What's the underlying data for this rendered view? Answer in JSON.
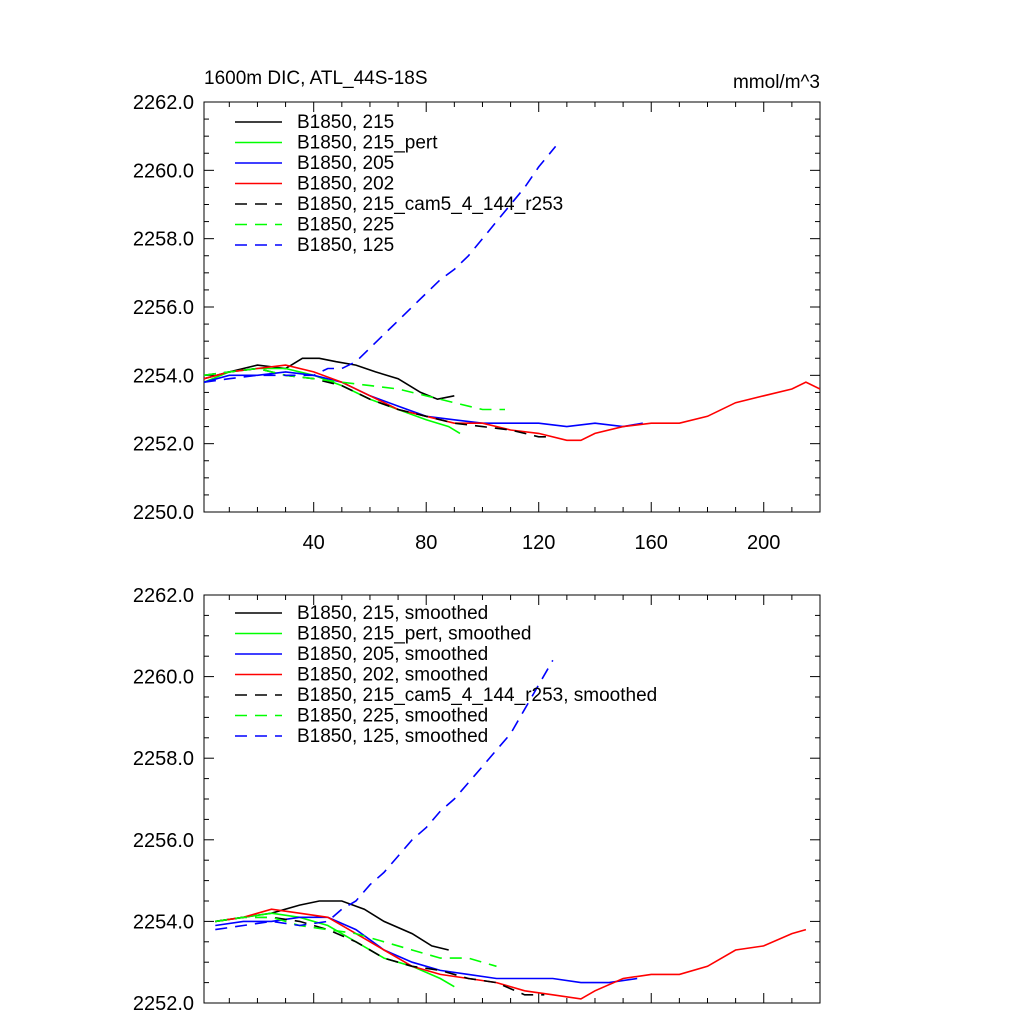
{
  "panel_top": {
    "title": "1600m DIC, ATL_44S-18S",
    "units": "mmol/m^3"
  },
  "colors": {
    "black": "#000000",
    "green": "#00ff00",
    "blue": "#0000ff",
    "red": "#ff0000"
  },
  "chart_data": [
    {
      "type": "line",
      "title": "1600m DIC, ATL_44S-18S",
      "units_label": "mmol/m^3",
      "xlabel": "",
      "ylabel": "",
      "xlim": [
        1,
        220
      ],
      "ylim": [
        2250,
        2262
      ],
      "xticks": [
        40,
        80,
        120,
        160,
        200
      ],
      "xtick_labels": [
        "40",
        "80",
        "120",
        "160",
        "200"
      ],
      "yticks": [
        2250,
        2252,
        2254,
        2256,
        2258,
        2260,
        2262
      ],
      "ytick_labels": [
        "2250.0",
        "2252.0",
        "2254.0",
        "2256.0",
        "2258.0",
        "2260.0",
        "2262.0"
      ],
      "legend_position": "top-left",
      "series": [
        {
          "name": "B1850, 215",
          "color": "#000000",
          "dash": "solid",
          "x": [
            1,
            10,
            20,
            30,
            36,
            42,
            48,
            55,
            62,
            70,
            78,
            84,
            90
          ],
          "y": [
            2253.9,
            2254.1,
            2254.3,
            2254.2,
            2254.5,
            2254.5,
            2254.4,
            2254.3,
            2254.1,
            2253.9,
            2253.5,
            2253.3,
            2253.4
          ]
        },
        {
          "name": "B1850, 215_pert",
          "color": "#00ff00",
          "dash": "solid",
          "x": [
            1,
            10,
            20,
            30,
            40,
            50,
            60,
            70,
            80,
            88,
            92
          ],
          "y": [
            2253.8,
            2254.1,
            2254.2,
            2254.2,
            2254.0,
            2253.7,
            2253.3,
            2253.0,
            2252.7,
            2252.5,
            2252.3
          ]
        },
        {
          "name": "B1850, 205",
          "color": "#0000ff",
          "dash": "solid",
          "x": [
            1,
            10,
            20,
            30,
            40,
            50,
            60,
            70,
            80,
            90,
            100,
            110,
            120,
            130,
            140,
            150,
            157
          ],
          "y": [
            2253.8,
            2254.0,
            2254.0,
            2254.1,
            2254.0,
            2253.8,
            2253.4,
            2253.1,
            2252.8,
            2252.7,
            2252.6,
            2252.6,
            2252.6,
            2252.5,
            2252.6,
            2252.5,
            2252.6
          ]
        },
        {
          "name": "B1850, 202",
          "color": "#ff0000",
          "dash": "solid",
          "x": [
            1,
            10,
            20,
            30,
            40,
            50,
            60,
            70,
            80,
            90,
            100,
            110,
            120,
            130,
            135,
            140,
            150,
            160,
            170,
            180,
            190,
            200,
            210,
            215,
            220
          ],
          "y": [
            2253.9,
            2254.1,
            2254.2,
            2254.3,
            2254.1,
            2253.8,
            2253.4,
            2253.0,
            2252.8,
            2252.6,
            2252.6,
            2252.4,
            2252.3,
            2252.1,
            2252.1,
            2252.3,
            2252.5,
            2252.6,
            2252.6,
            2252.8,
            2253.2,
            2253.4,
            2253.6,
            2253.8,
            2253.6
          ]
        },
        {
          "name": "B1850, 215_cam5_4_144_r253",
          "color": "#000000",
          "dash": "dashed",
          "x": [
            1,
            10,
            20,
            30,
            40,
            50,
            60,
            70,
            80,
            90,
            100,
            110,
            115,
            120,
            125
          ],
          "y": [
            2254.0,
            2254.1,
            2254.2,
            2254.0,
            2253.9,
            2253.7,
            2253.3,
            2253.0,
            2252.8,
            2252.6,
            2252.5,
            2252.4,
            2252.3,
            2252.2,
            2252.2
          ]
        },
        {
          "name": "B1850, 225",
          "color": "#00ff00",
          "dash": "dashed",
          "x": [
            1,
            10,
            20,
            30,
            40,
            50,
            60,
            70,
            80,
            90,
            100,
            108
          ],
          "y": [
            2254.0,
            2254.1,
            2254.2,
            2254.0,
            2253.9,
            2253.8,
            2253.7,
            2253.6,
            2253.4,
            2253.2,
            2253.0,
            2253.0
          ]
        },
        {
          "name": "B1850, 125",
          "color": "#0000ff",
          "dash": "dashed",
          "x": [
            1,
            10,
            20,
            30,
            40,
            45,
            50,
            55,
            60,
            65,
            70,
            75,
            80,
            85,
            90,
            95,
            100,
            105,
            110,
            115,
            120,
            126
          ],
          "y": [
            2253.8,
            2253.9,
            2254.0,
            2254.0,
            2254.0,
            2254.2,
            2254.2,
            2254.4,
            2254.8,
            2255.2,
            2255.6,
            2256.0,
            2256.4,
            2256.8,
            2257.1,
            2257.5,
            2258.0,
            2258.5,
            2259.0,
            2259.5,
            2260.1,
            2260.7
          ]
        }
      ]
    },
    {
      "type": "line",
      "title": "",
      "xlabel": "",
      "ylabel": "",
      "xlim": [
        1,
        220
      ],
      "ylim": [
        2252,
        2262
      ],
      "yticks": [
        2252,
        2254,
        2256,
        2258,
        2260,
        2262
      ],
      "ytick_labels": [
        "2252.0",
        "2254.0",
        "2256.0",
        "2258.0",
        "2260.0",
        "2262.0"
      ],
      "legend_position": "top-left",
      "series": [
        {
          "name": "B1850, 215, smoothed",
          "color": "#000000",
          "dash": "solid",
          "x": [
            5,
            15,
            25,
            35,
            42,
            50,
            58,
            65,
            75,
            82,
            88
          ],
          "y": [
            2254.0,
            2254.1,
            2254.2,
            2254.4,
            2254.5,
            2254.5,
            2254.3,
            2254.0,
            2253.7,
            2253.4,
            2253.3
          ]
        },
        {
          "name": "B1850, 215_pert, smoothed",
          "color": "#00ff00",
          "dash": "solid",
          "x": [
            5,
            15,
            25,
            35,
            45,
            55,
            65,
            75,
            85,
            90
          ],
          "y": [
            2254.0,
            2254.1,
            2254.2,
            2254.1,
            2253.9,
            2253.5,
            2253.1,
            2252.9,
            2252.6,
            2252.4
          ]
        },
        {
          "name": "B1850, 205, smoothed",
          "color": "#0000ff",
          "dash": "solid",
          "x": [
            5,
            15,
            25,
            35,
            45,
            55,
            65,
            75,
            85,
            95,
            105,
            115,
            125,
            135,
            145,
            155
          ],
          "y": [
            2253.9,
            2254.0,
            2254.0,
            2254.1,
            2254.1,
            2253.8,
            2253.3,
            2253.0,
            2252.8,
            2252.7,
            2252.6,
            2252.6,
            2252.6,
            2252.5,
            2252.5,
            2252.6
          ]
        },
        {
          "name": "B1850, 202, smoothed",
          "color": "#ff0000",
          "dash": "solid",
          "x": [
            5,
            15,
            25,
            35,
            45,
            55,
            65,
            75,
            85,
            95,
            105,
            115,
            125,
            135,
            140,
            150,
            160,
            170,
            180,
            190,
            200,
            210,
            215
          ],
          "y": [
            2254.0,
            2254.1,
            2254.3,
            2254.2,
            2254.1,
            2253.7,
            2253.3,
            2252.9,
            2252.7,
            2252.6,
            2252.5,
            2252.3,
            2252.2,
            2252.1,
            2252.3,
            2252.6,
            2252.7,
            2252.7,
            2252.9,
            2253.3,
            2253.4,
            2253.7,
            2253.8
          ]
        },
        {
          "name": "B1850, 215_cam5_4_144_r253, smoothed",
          "color": "#000000",
          "dash": "dashed",
          "x": [
            5,
            15,
            25,
            35,
            45,
            55,
            65,
            75,
            85,
            95,
            105,
            115,
            122
          ],
          "y": [
            2254.0,
            2254.1,
            2254.1,
            2254.0,
            2253.8,
            2253.5,
            2253.1,
            2252.9,
            2252.8,
            2252.6,
            2252.5,
            2252.2,
            2252.2
          ]
        },
        {
          "name": "B1850, 225, smoothed",
          "color": "#00ff00",
          "dash": "dashed",
          "x": [
            5,
            15,
            25,
            35,
            45,
            55,
            65,
            75,
            85,
            95,
            105
          ],
          "y": [
            2254.0,
            2254.1,
            2254.1,
            2253.9,
            2253.8,
            2253.7,
            2253.5,
            2253.3,
            2253.1,
            2253.1,
            2252.9
          ]
        },
        {
          "name": "B1850, 125, smoothed",
          "color": "#0000ff",
          "dash": "dashed",
          "x": [
            5,
            15,
            25,
            35,
            45,
            50,
            55,
            60,
            65,
            70,
            75,
            80,
            85,
            90,
            95,
            100,
            105,
            110,
            115,
            120,
            125
          ],
          "y": [
            2253.8,
            2253.9,
            2254.0,
            2253.9,
            2254.0,
            2254.3,
            2254.5,
            2254.9,
            2255.2,
            2255.6,
            2256.0,
            2256.3,
            2256.7,
            2257.0,
            2257.4,
            2257.8,
            2258.2,
            2258.6,
            2259.2,
            2259.8,
            2260.4
          ]
        }
      ]
    }
  ]
}
